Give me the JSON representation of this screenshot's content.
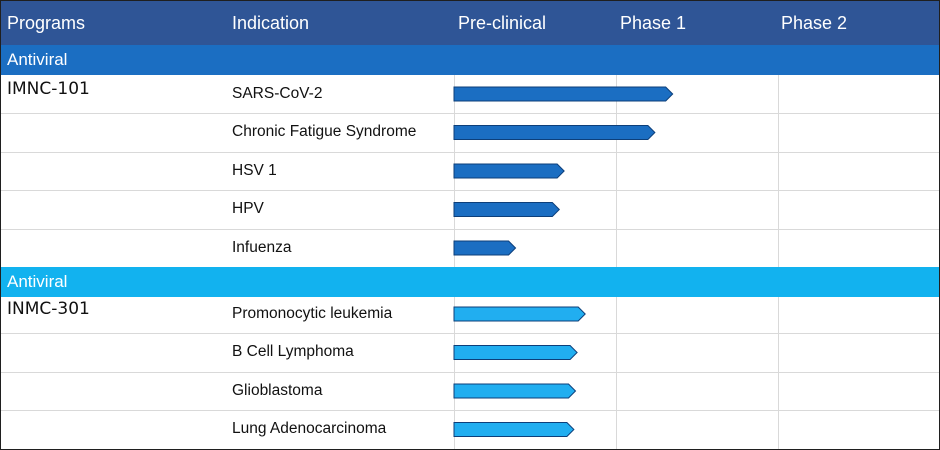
{
  "header": {
    "programs": "Programs",
    "indication": "Indication",
    "preclinical": "Pre-clinical",
    "phase1": "Phase 1",
    "phase2": "Phase 2"
  },
  "colors": {
    "header_bg": "#2f5596",
    "section1_bg": "#1b6ec2",
    "section2_bg": "#12b2ef",
    "bar1": "#1b6ec2",
    "bar2": "#21aef0"
  },
  "chart_data": {
    "type": "bar",
    "title": "",
    "stages": [
      "Pre-clinical",
      "Phase 1",
      "Phase 2"
    ],
    "xlim": [
      0,
      3
    ],
    "groups": [
      {
        "section": "Antiviral",
        "program": "IMNC-101",
        "rows": [
          {
            "indication": "SARS-CoV-2",
            "progress": 1.35
          },
          {
            "indication": "Chronic Fatigue Syndrome",
            "progress": 1.24
          },
          {
            "indication": "HSV 1",
            "progress": 0.68
          },
          {
            "indication": "HPV",
            "progress": 0.65
          },
          {
            "indication": "Infuenza",
            "progress": 0.38
          }
        ]
      },
      {
        "section": "Antiviral",
        "program": "INMC-301",
        "rows": [
          {
            "indication": "Promonocytic leukemia",
            "progress": 0.81
          },
          {
            "indication": "B Cell Lymphoma",
            "progress": 0.76
          },
          {
            "indication": "Glioblastoma",
            "progress": 0.75
          },
          {
            "indication": "Lung Adenocarcinoma",
            "progress": 0.74
          }
        ]
      }
    ]
  }
}
